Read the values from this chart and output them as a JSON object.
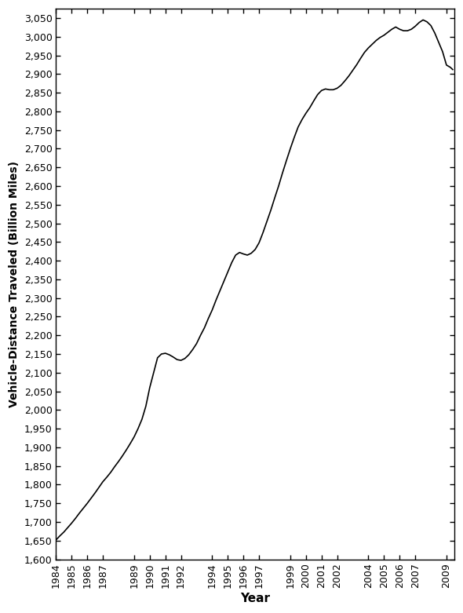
{
  "xlabel": "Year",
  "ylabel": "Vehicle-Distance Traveled (Billion Miles)",
  "line_color": "#000000",
  "line_width": 1.2,
  "background_color": "#ffffff",
  "ylim": [
    1600,
    3075
  ],
  "x_tick_labels": [
    "1984",
    "1985",
    "1986",
    "1987",
    "1989",
    "1990",
    "1991",
    "1992",
    "1994",
    "1995",
    "1996",
    "1997",
    "1999",
    "2000",
    "2001",
    "2002",
    "2004",
    "2005",
    "2006",
    "2007",
    "2009"
  ],
  "x_tick_positions": [
    1984,
    1985,
    1986,
    1987,
    1989,
    1990,
    1991,
    1992,
    1994,
    1995,
    1996,
    1997,
    1999,
    2000,
    2001,
    2002,
    2004,
    2005,
    2006,
    2007,
    2009
  ],
  "data_x": [
    1984.0,
    1984.25,
    1984.5,
    1984.75,
    1985.0,
    1985.25,
    1985.5,
    1985.75,
    1986.0,
    1986.25,
    1986.5,
    1986.75,
    1987.0,
    1987.25,
    1987.5,
    1987.75,
    1988.0,
    1988.25,
    1988.5,
    1988.75,
    1989.0,
    1989.25,
    1989.5,
    1989.75,
    1990.0,
    1990.25,
    1990.5,
    1990.75,
    1991.0,
    1991.25,
    1991.5,
    1991.75,
    1992.0,
    1992.25,
    1992.5,
    1992.75,
    1993.0,
    1993.25,
    1993.5,
    1993.75,
    1994.0,
    1994.25,
    1994.5,
    1994.75,
    1995.0,
    1995.25,
    1995.5,
    1995.75,
    1996.0,
    1996.25,
    1996.5,
    1996.75,
    1997.0,
    1997.25,
    1997.5,
    1997.75,
    1998.0,
    1998.25,
    1998.5,
    1998.75,
    1999.0,
    1999.25,
    1999.5,
    1999.75,
    2000.0,
    2000.25,
    2000.5,
    2000.75,
    2001.0,
    2001.25,
    2001.5,
    2001.75,
    2002.0,
    2002.25,
    2002.5,
    2002.75,
    2003.0,
    2003.25,
    2003.5,
    2003.75,
    2004.0,
    2004.25,
    2004.5,
    2004.75,
    2005.0,
    2005.25,
    2005.5,
    2005.75,
    2006.0,
    2006.25,
    2006.5,
    2006.75,
    2007.0,
    2007.25,
    2007.5,
    2007.75,
    2008.0,
    2008.25,
    2008.5,
    2008.75,
    2009.0,
    2009.25,
    2009.4
  ],
  "data_y": [
    1652,
    1663,
    1673,
    1685,
    1697,
    1710,
    1724,
    1737,
    1750,
    1764,
    1778,
    1793,
    1808,
    1820,
    1833,
    1848,
    1862,
    1877,
    1893,
    1910,
    1928,
    1950,
    1975,
    2010,
    2060,
    2100,
    2140,
    2150,
    2152,
    2148,
    2142,
    2135,
    2133,
    2138,
    2148,
    2162,
    2178,
    2200,
    2220,
    2245,
    2268,
    2295,
    2320,
    2345,
    2370,
    2395,
    2415,
    2422,
    2418,
    2415,
    2420,
    2430,
    2448,
    2475,
    2505,
    2535,
    2568,
    2600,
    2635,
    2668,
    2700,
    2730,
    2758,
    2778,
    2795,
    2810,
    2828,
    2845,
    2856,
    2860,
    2858,
    2858,
    2862,
    2870,
    2882,
    2895,
    2910,
    2925,
    2942,
    2958,
    2970,
    2980,
    2990,
    2998,
    3004,
    3012,
    3020,
    3026,
    3020,
    3016,
    3016,
    3020,
    3028,
    3038,
    3045,
    3040,
    3030,
    3010,
    2985,
    2960,
    2924,
    2918,
    2912
  ]
}
